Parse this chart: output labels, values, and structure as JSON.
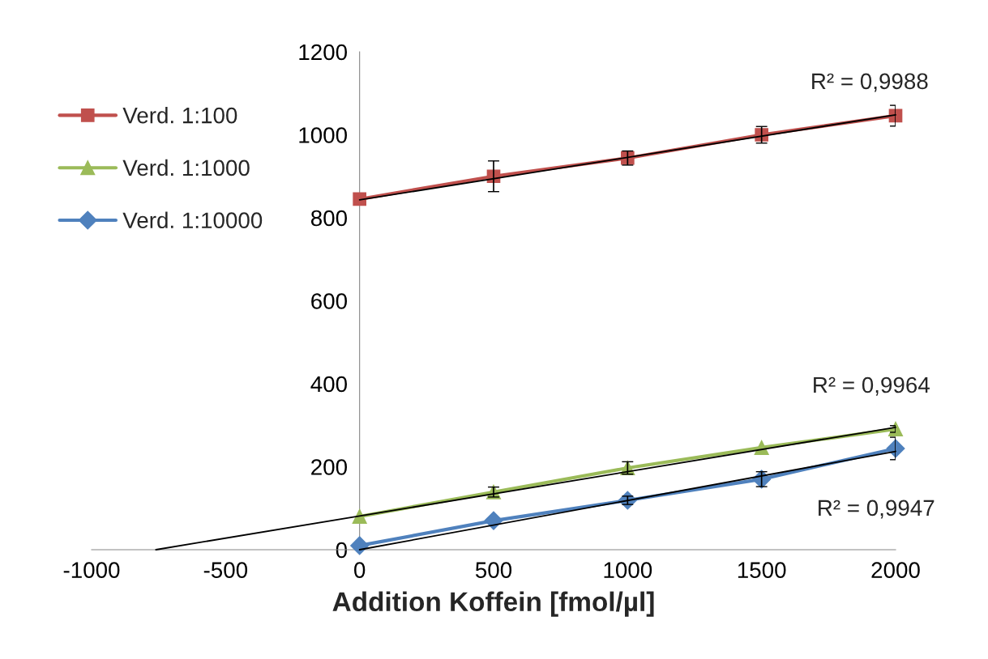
{
  "chart_data": {
    "type": "line",
    "xlabel": "Addition Koffein [fmol/µl]",
    "x": [
      0,
      500,
      1000,
      1500,
      2000
    ],
    "series": [
      {
        "name": "Verd. 1:100",
        "color": "#c0504d",
        "marker": "square",
        "values": [
          845,
          900,
          944,
          1000,
          1046
        ],
        "errors": [
          null,
          37,
          17,
          20,
          25
        ]
      },
      {
        "name": "Verd. 1:1000",
        "color": "#9bbb59",
        "marker": "triangle",
        "values": [
          80,
          139,
          197,
          246,
          291
        ],
        "errors": [
          null,
          12,
          15,
          null,
          8
        ]
      },
      {
        "name": "Verd. 1:10000",
        "color": "#4f81bd",
        "marker": "diamond",
        "values": [
          10,
          70,
          119,
          170,
          244
        ],
        "errors": [
          null,
          null,
          10,
          18,
          27
        ]
      },
      {
        "type": "line",
        "color": "#000000",
        "marker": "none",
        "x": [
          0,
          2000
        ],
        "values": [
          843,
          1048
        ]
      },
      {
        "type": "line",
        "color": "#000000",
        "marker": "none",
        "x": [
          -760,
          2000
        ],
        "values": [
          0,
          295
        ]
      },
      {
        "type": "line",
        "color": "#000000",
        "marker": "none",
        "x": [
          0,
          2000
        ],
        "values": [
          0,
          237
        ]
      }
    ],
    "annotations": [
      "R² = 0,9988",
      "R² = 0,9964",
      "R² = 0,9947"
    ],
    "xlim": [
      -1000,
      2000
    ],
    "xticks": [
      -1000,
      -500,
      0,
      500,
      1000,
      1500,
      2000
    ],
    "ylim": [
      0,
      1200
    ],
    "yticks": [
      0,
      200,
      400,
      600,
      800,
      1000,
      1200
    ],
    "grid": false,
    "legend": "top left"
  }
}
